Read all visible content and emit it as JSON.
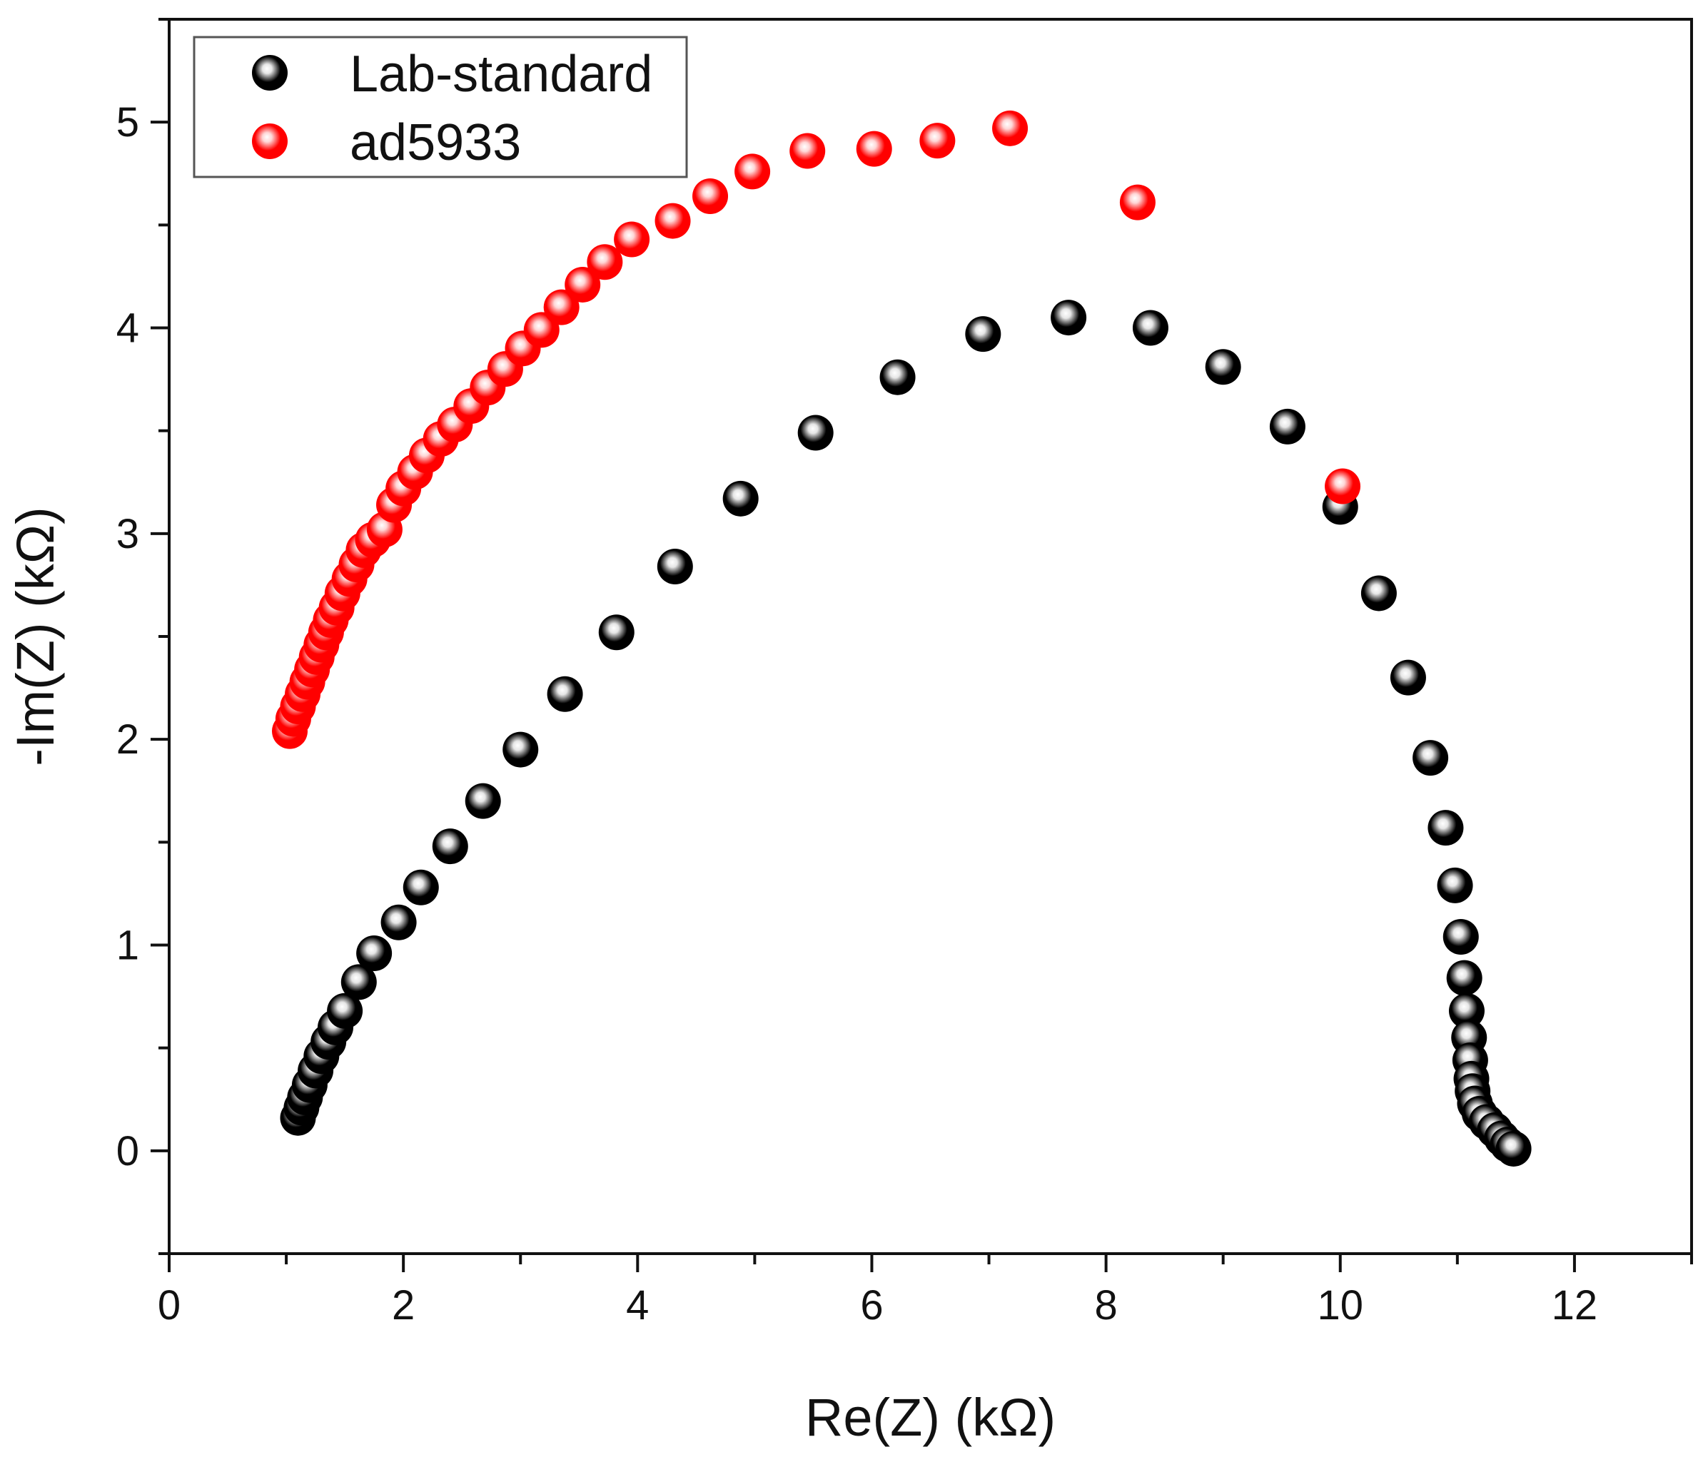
{
  "chart_data": {
    "type": "scatter",
    "title": "",
    "xlabel": "Re(Z) (kΩ)",
    "ylabel": "-Im(Z) (kΩ)",
    "xlim": [
      0,
      13
    ],
    "ylim": [
      -0.5,
      5.5
    ],
    "xticks": [
      0,
      2,
      4,
      6,
      8,
      10,
      12
    ],
    "yticks": [
      0,
      1,
      2,
      3,
      4,
      5
    ],
    "x_tick_labels": [
      "0",
      "2",
      "4",
      "6",
      "8",
      "10",
      "12"
    ],
    "y_tick_labels": [
      "0",
      "1",
      "2",
      "3",
      "4",
      "5"
    ],
    "grid": false,
    "legend_position": "top-left",
    "series": [
      {
        "name": "Lab-standard",
        "color": "#000000",
        "highlight": "#e6e6e6",
        "points": [
          [
            1.1,
            0.16
          ],
          [
            1.13,
            0.21
          ],
          [
            1.16,
            0.26
          ],
          [
            1.2,
            0.32
          ],
          [
            1.25,
            0.39
          ],
          [
            1.3,
            0.46
          ],
          [
            1.36,
            0.53
          ],
          [
            1.42,
            0.6
          ],
          [
            1.5,
            0.68
          ],
          [
            1.62,
            0.82
          ],
          [
            1.75,
            0.96
          ],
          [
            1.96,
            1.11
          ],
          [
            2.15,
            1.28
          ],
          [
            2.4,
            1.48
          ],
          [
            2.68,
            1.7
          ],
          [
            3.0,
            1.95
          ],
          [
            3.38,
            2.22
          ],
          [
            3.82,
            2.52
          ],
          [
            4.32,
            2.84
          ],
          [
            4.88,
            3.17
          ],
          [
            5.52,
            3.49
          ],
          [
            6.22,
            3.76
          ],
          [
            6.95,
            3.97
          ],
          [
            7.68,
            4.05
          ],
          [
            8.38,
            4.0
          ],
          [
            9.0,
            3.81
          ],
          [
            9.55,
            3.52
          ],
          [
            10.0,
            3.13
          ],
          [
            10.33,
            2.71
          ],
          [
            10.58,
            2.3
          ],
          [
            10.77,
            1.91
          ],
          [
            10.9,
            1.57
          ],
          [
            10.98,
            1.29
          ],
          [
            11.03,
            1.04
          ],
          [
            11.06,
            0.84
          ],
          [
            11.08,
            0.68
          ],
          [
            11.1,
            0.55
          ],
          [
            11.11,
            0.44
          ],
          [
            11.12,
            0.35
          ],
          [
            11.13,
            0.29
          ],
          [
            11.15,
            0.23
          ],
          [
            11.19,
            0.18
          ],
          [
            11.25,
            0.14
          ],
          [
            11.32,
            0.1
          ],
          [
            11.38,
            0.06
          ],
          [
            11.43,
            0.03
          ],
          [
            11.48,
            0.01
          ]
        ]
      },
      {
        "name": "ad5933",
        "color": "#ff0000",
        "highlight": "#ffd6d6",
        "points": [
          [
            1.03,
            2.04
          ],
          [
            1.06,
            2.1
          ],
          [
            1.1,
            2.16
          ],
          [
            1.14,
            2.22
          ],
          [
            1.18,
            2.28
          ],
          [
            1.22,
            2.34
          ],
          [
            1.26,
            2.4
          ],
          [
            1.3,
            2.46
          ],
          [
            1.34,
            2.52
          ],
          [
            1.38,
            2.58
          ],
          [
            1.43,
            2.64
          ],
          [
            1.48,
            2.71
          ],
          [
            1.54,
            2.78
          ],
          [
            1.6,
            2.85
          ],
          [
            1.66,
            2.92
          ],
          [
            1.74,
            2.97
          ],
          [
            1.84,
            3.02
          ],
          [
            1.92,
            3.14
          ],
          [
            2.0,
            3.22
          ],
          [
            2.1,
            3.3
          ],
          [
            2.2,
            3.38
          ],
          [
            2.32,
            3.46
          ],
          [
            2.44,
            3.53
          ],
          [
            2.58,
            3.62
          ],
          [
            2.72,
            3.71
          ],
          [
            2.87,
            3.8
          ],
          [
            3.02,
            3.9
          ],
          [
            3.18,
            3.99
          ],
          [
            3.35,
            4.1
          ],
          [
            3.53,
            4.21
          ],
          [
            3.72,
            4.32
          ],
          [
            3.95,
            4.43
          ],
          [
            4.3,
            4.52
          ],
          [
            4.62,
            4.64
          ],
          [
            4.98,
            4.76
          ],
          [
            5.45,
            4.86
          ],
          [
            6.02,
            4.87
          ],
          [
            6.56,
            4.91
          ],
          [
            7.18,
            4.97
          ],
          [
            8.27,
            4.61
          ],
          [
            10.02,
            3.23
          ]
        ]
      }
    ]
  }
}
